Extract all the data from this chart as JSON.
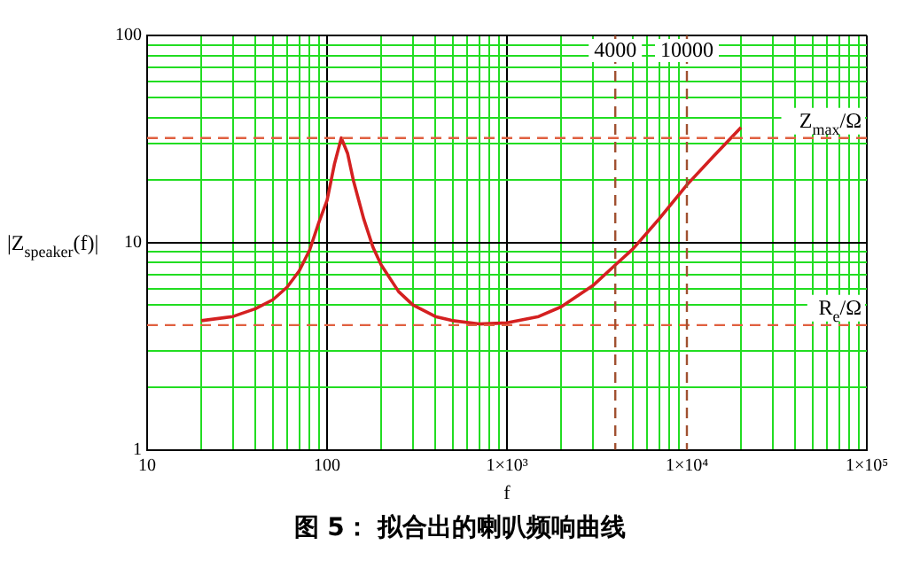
{
  "chart_data": {
    "type": "line",
    "title": "图 5： 拟合出的喇叭频响曲线",
    "xlabel": "f",
    "ylabel": "|Z$_{speaker}$(f)|",
    "log": "xy",
    "grid": true,
    "legend": false,
    "marker": "none",
    "line_style": "solid",
    "xlim": [
      10,
      100000
    ],
    "ylim": [
      1,
      100
    ],
    "xticks": [
      10,
      {
        "value": 20,
        "label": null
      },
      {
        "value": 30,
        "label": null
      },
      {
        "value": 40,
        "label": null
      },
      {
        "value": 50,
        "label": null
      },
      {
        "value": 60,
        "label": null
      },
      {
        "value": 70,
        "label": null
      },
      {
        "value": 80,
        "label": null
      },
      {
        "value": 90,
        "label": null
      },
      100,
      {
        "value": 200,
        "label": null
      },
      {
        "value": 300,
        "label": null
      },
      {
        "value": 400,
        "label": null
      },
      {
        "value": 500,
        "label": null
      },
      {
        "value": 600,
        "label": null
      },
      {
        "value": 700,
        "label": null
      },
      {
        "value": 800,
        "label": null
      },
      {
        "value": 900,
        "label": null
      },
      {
        "value": 1000,
        "label": "1×10³"
      },
      {
        "value": 2000,
        "label": null
      },
      {
        "value": 3000,
        "label": null
      },
      {
        "value": 5000,
        "label": null
      },
      {
        "value": 6000,
        "label": null
      },
      {
        "value": 7000,
        "label": null
      },
      {
        "value": 8000,
        "label": null
      },
      {
        "value": 9000,
        "label": null
      },
      {
        "value": 10000,
        "label": "1×10⁴"
      },
      {
        "value": 20000,
        "label": null
      },
      {
        "value": 30000,
        "label": null
      },
      {
        "value": 40000,
        "label": null
      },
      {
        "value": 50000,
        "label": null
      },
      {
        "value": 60000,
        "label": null
      },
      {
        "value": 70000,
        "label": null
      },
      {
        "value": 80000,
        "label": null
      },
      {
        "value": 90000,
        "label": null
      },
      {
        "value": 100000,
        "label": "1×10⁵"
      }
    ],
    "yticks": [
      1,
      {
        "value": 2,
        "label": null
      },
      {
        "value": 3,
        "label": null
      },
      {
        "value": 4,
        "label": null
      },
      {
        "value": 5,
        "label": null
      },
      {
        "value": 6,
        "label": null
      },
      {
        "value": 7,
        "label": null
      },
      {
        "value": 8,
        "label": null
      },
      {
        "value": 9,
        "label": null
      },
      10,
      {
        "value": 20,
        "label": null
      },
      {
        "value": 30,
        "label": null
      },
      {
        "value": 40,
        "label": null
      },
      {
        "value": 50,
        "label": null
      },
      {
        "value": 60,
        "label": null
      },
      {
        "value": 70,
        "label": null
      },
      {
        "value": 80,
        "label": null
      },
      {
        "value": 90,
        "label": null
      },
      100
    ],
    "ref_lines": [
      {
        "axis": "y",
        "value": 32,
        "label": "Z$_{max}$/Ω",
        "color": "#e06040",
        "line_style": "dashed"
      },
      {
        "axis": "y",
        "value": 4,
        "label": "R$_{e}$/Ω",
        "color": "#e06040",
        "line_style": "dashed"
      },
      {
        "axis": "x",
        "value": 4000,
        "label": "4000",
        "color": "#a05030",
        "line_style": "dashed"
      },
      {
        "axis": "x",
        "value": 10000,
        "label": "10000",
        "color": "#a05030",
        "line_style": "dashed"
      }
    ],
    "series": [
      {
        "color": "#d42020",
        "x": [
          20,
          30,
          40,
          50,
          60,
          70,
          80,
          90,
          100,
          110,
          120,
          130,
          140,
          160,
          180,
          200,
          250,
          300,
          400,
          500,
          700,
          1000,
          1500,
          2000,
          3000,
          4000,
          5000,
          7000,
          10000,
          14000,
          20000
        ],
        "values": [
          4.2,
          4.4,
          4.8,
          5.3,
          6.1,
          7.3,
          9.2,
          12.5,
          16,
          24,
          32,
          27,
          20,
          13,
          9.5,
          7.8,
          5.8,
          5.0,
          4.4,
          4.2,
          4.05,
          4.1,
          4.4,
          4.9,
          6.2,
          7.8,
          9.3,
          13,
          19,
          26,
          36
        ]
      }
    ]
  }
}
